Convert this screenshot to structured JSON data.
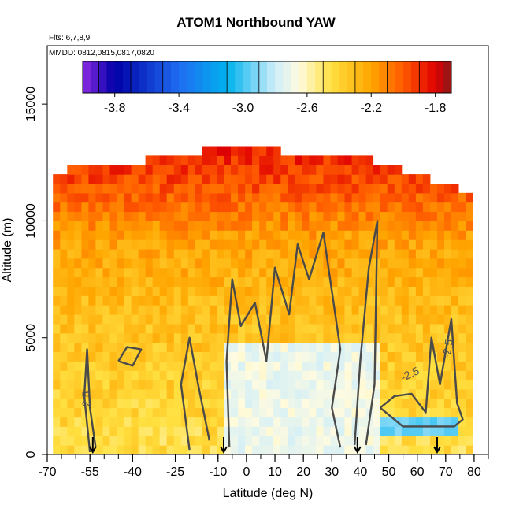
{
  "chart_data": {
    "type": "heatmap",
    "title": "ATOM1 Northbound YAW",
    "annotations": {
      "flights": "Flts: 6,7,8,9",
      "dates": "MMDD: 0812,0815,0817,0820"
    },
    "xlabel": "Latitude (deg N)",
    "ylabel": "Altitude (m)",
    "xlim": [
      -70,
      85
    ],
    "ylim": [
      0,
      17500
    ],
    "x_ticks": [
      -70,
      -55,
      -40,
      -25,
      -10,
      0,
      10,
      20,
      30,
      40,
      50,
      60,
      70,
      80
    ],
    "x_tick_labels": [
      "-70",
      "-55",
      "-40",
      "-25",
      "-10",
      "0",
      "10",
      "20",
      "30",
      "40",
      "50",
      "60",
      "70",
      "80"
    ],
    "y_ticks": [
      0,
      5000,
      10000,
      15000
    ],
    "y_tick_labels": [
      "0",
      "5000",
      "10000",
      "15000"
    ],
    "colorbar": {
      "min": -4.0,
      "max": -1.7,
      "ticks": [
        -3.8,
        -3.4,
        -3.0,
        -2.6,
        -2.2,
        -1.8
      ],
      "tick_labels": [
        "-3.8",
        "-3.4",
        "-3.0",
        "-2.6",
        "-2.2",
        "-1.8"
      ],
      "color_stops": [
        {
          "value": -4.0,
          "color": "#8a2be2"
        },
        {
          "value": -3.8,
          "color": "#0000a8"
        },
        {
          "value": -3.4,
          "color": "#1e6cf0"
        },
        {
          "value": -3.1,
          "color": "#00b2ee"
        },
        {
          "value": -2.8,
          "color": "#cfeefa"
        },
        {
          "value": -2.65,
          "color": "#fffbe0"
        },
        {
          "value": -2.45,
          "color": "#ffe040"
        },
        {
          "value": -2.2,
          "color": "#ffa500"
        },
        {
          "value": -2.0,
          "color": "#ff5a00"
        },
        {
          "value": -1.8,
          "color": "#e00000"
        },
        {
          "value": -1.7,
          "color": "#8b1a1a"
        }
      ]
    },
    "contour_level": -2.5,
    "contour_labels": [
      "-2.5",
      "-2.5",
      "-2.5"
    ],
    "grid": false,
    "flight_markers_lat": [
      -54,
      -8,
      39,
      67
    ],
    "profile": {
      "column_top_altitude": [
        {
          "lat": -70,
          "alt": 11500
        },
        {
          "lat": -64,
          "alt": 12000
        },
        {
          "lat": -30,
          "alt": 12500
        },
        {
          "lat": -10,
          "alt": 13000
        },
        {
          "lat": 40,
          "alt": 12500
        },
        {
          "lat": 78,
          "alt": 11000
        }
      ],
      "value_by_altitude": [
        {
          "alt": 0,
          "value": -2.45
        },
        {
          "alt": 2000,
          "value": -2.4
        },
        {
          "alt": 6000,
          "value": -2.3
        },
        {
          "alt": 9000,
          "value": -2.2
        },
        {
          "alt": 11000,
          "value": -2.0
        },
        {
          "alt": 13000,
          "value": -1.85
        }
      ],
      "clean_band": {
        "lat_from": -10,
        "lat_to": 45,
        "alt_from": 0,
        "alt_to": 4500,
        "value": -2.7
      },
      "blue_band": {
        "lat_from": 45,
        "lat_to": 73,
        "alt_from": 500,
        "alt_to": 1500,
        "value": -2.95
      }
    }
  }
}
